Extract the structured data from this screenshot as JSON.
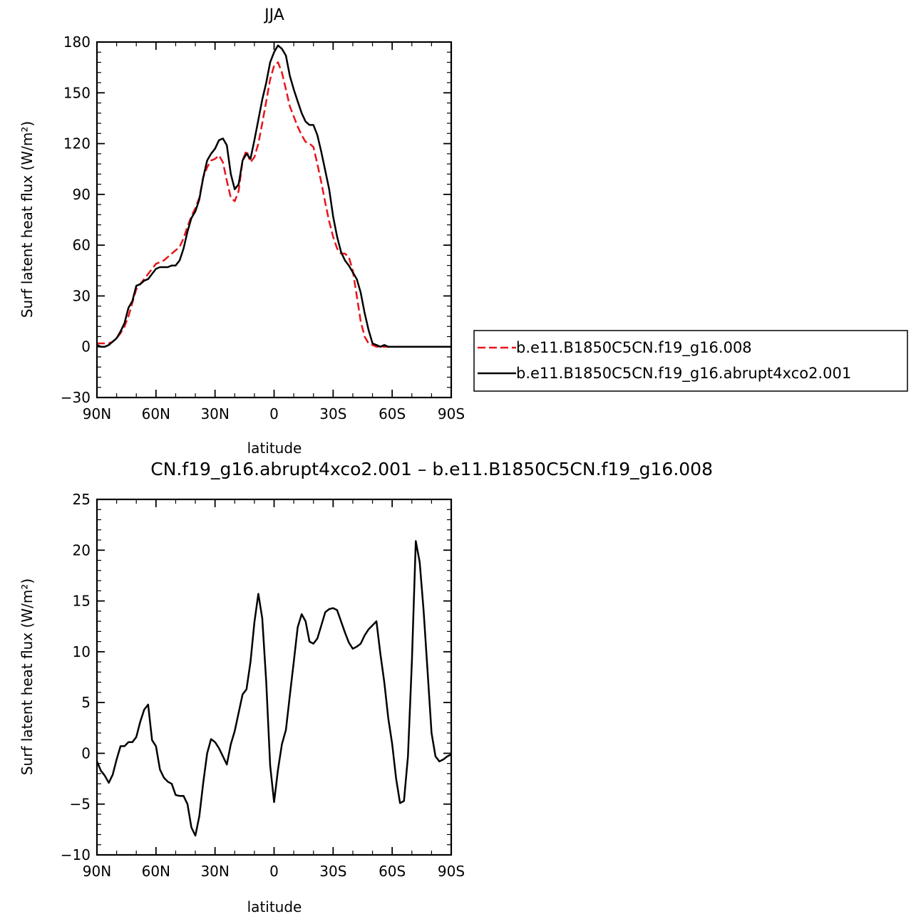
{
  "chart_data": [
    {
      "type": "line",
      "title": "JJA",
      "xlabel": "latitude",
      "ylabel": "Surf latent heat flux (W/m²)",
      "xlim": [
        90,
        -90
      ],
      "ylim": [
        -30,
        180
      ],
      "yticks": [
        -30,
        0,
        30,
        60,
        90,
        120,
        150,
        180
      ],
      "xticks": [
        {
          "value": 90,
          "label": "90N"
        },
        {
          "value": 60,
          "label": "60N"
        },
        {
          "value": 30,
          "label": "30N"
        },
        {
          "value": 0,
          "label": "0"
        },
        {
          "value": -30,
          "label": "30S"
        },
        {
          "value": -60,
          "label": "60S"
        },
        {
          "value": -90,
          "label": "90S"
        }
      ],
      "grid": false,
      "legend_position": "right",
      "series": [
        {
          "name": "b.e11.B1850C5CN.f19_g16.008",
          "color": "#e8141b",
          "dash": "dashed",
          "x": [
            90,
            88,
            86,
            84,
            82,
            80,
            78,
            76,
            74,
            72,
            70,
            68,
            66,
            64,
            62,
            60,
            58,
            56,
            54,
            52,
            50,
            48,
            46,
            44,
            42,
            40,
            38,
            36,
            34,
            32,
            30,
            28,
            26,
            24,
            22,
            20,
            18,
            16,
            14,
            12,
            10,
            8,
            6,
            4,
            2,
            0,
            -2,
            -4,
            -6,
            -8,
            -10,
            -12,
            -14,
            -16,
            -18,
            -20,
            -22,
            -24,
            -26,
            -28,
            -30,
            -32,
            -34,
            -36,
            -38,
            -40,
            -42,
            -44,
            -46,
            -48,
            -50,
            -52,
            -54,
            -56,
            -58,
            -60,
            -62,
            -64,
            -66,
            -68,
            -70,
            -72,
            -74,
            -76,
            -78,
            -80,
            -82,
            -84,
            -86,
            -88,
            -90
          ],
          "y": [
            2,
            2,
            2,
            2,
            3,
            5,
            8,
            12,
            18,
            26,
            34,
            37,
            40,
            43,
            46,
            49,
            50,
            51,
            53,
            55,
            57,
            59,
            64,
            71,
            77,
            82,
            88,
            100,
            106,
            110,
            111,
            113,
            109,
            98,
            88,
            86,
            92,
            110,
            116,
            109,
            112,
            120,
            132,
            145,
            158,
            166,
            168,
            162,
            152,
            142,
            136,
            130,
            125,
            121,
            120,
            118,
            108,
            97,
            85,
            74,
            65,
            58,
            55,
            55,
            53,
            45,
            30,
            15,
            6,
            2,
            1,
            0,
            0,
            0,
            0,
            0,
            0,
            0,
            0,
            0,
            0,
            0,
            0,
            0,
            0,
            0,
            0,
            0,
            0,
            0,
            0
          ]
        },
        {
          "name": "b.e11.B1850C5CN.f19_g16.abrupt4xco2.001",
          "color": "#000000",
          "dash": "solid",
          "x": [
            90,
            88,
            86,
            84,
            82,
            80,
            78,
            76,
            74,
            72,
            70,
            68,
            66,
            64,
            62,
            60,
            58,
            56,
            54,
            52,
            50,
            48,
            46,
            44,
            42,
            40,
            38,
            36,
            34,
            32,
            30,
            28,
            26,
            24,
            22,
            20,
            18,
            16,
            14,
            12,
            10,
            8,
            6,
            4,
            2,
            0,
            -2,
            -4,
            -6,
            -8,
            -10,
            -12,
            -14,
            -16,
            -18,
            -20,
            -22,
            -24,
            -26,
            -28,
            -30,
            -32,
            -34,
            -36,
            -38,
            -40,
            -42,
            -44,
            -46,
            -48,
            -50,
            -52,
            -54,
            -56,
            -58,
            -60,
            -62,
            -64,
            -66,
            -68,
            -70,
            -72,
            -74,
            -76,
            -78,
            -80,
            -82,
            -84,
            -86,
            -88,
            -90
          ],
          "y": [
            1,
            0,
            0,
            1,
            3,
            5,
            9,
            14,
            23,
            27,
            36,
            37,
            39,
            40,
            43,
            46,
            47,
            47,
            47,
            48,
            48,
            51,
            58,
            68,
            76,
            80,
            87,
            100,
            110,
            114,
            117,
            122,
            123,
            119,
            102,
            93,
            96,
            110,
            114,
            111,
            122,
            134,
            146,
            156,
            168,
            174,
            178,
            176,
            172,
            160,
            152,
            145,
            138,
            133,
            131,
            131,
            125,
            115,
            104,
            93,
            77,
            65,
            56,
            51,
            48,
            44,
            40,
            32,
            20,
            10,
            2,
            1,
            0,
            1,
            0,
            0,
            0,
            0,
            0,
            0,
            0,
            0,
            0,
            0,
            0,
            0,
            0,
            0,
            0,
            0,
            0
          ]
        }
      ]
    },
    {
      "type": "line",
      "title": "CN.f19_g16.abrupt4xco2.001 – b.e11.B1850C5CN.f19_g16.008",
      "xlabel": "latitude",
      "ylabel": "Surf latent heat flux (W/m²)",
      "xlim": [
        90,
        -90
      ],
      "ylim": [
        -10,
        25
      ],
      "yticks": [
        -10,
        -5,
        0,
        5,
        10,
        15,
        20,
        25
      ],
      "xticks": [
        {
          "value": 90,
          "label": "90N"
        },
        {
          "value": 60,
          "label": "60N"
        },
        {
          "value": 30,
          "label": "30N"
        },
        {
          "value": 0,
          "label": "0"
        },
        {
          "value": -30,
          "label": "30S"
        },
        {
          "value": -60,
          "label": "60S"
        },
        {
          "value": -90,
          "label": "90S"
        }
      ],
      "grid": false,
      "series": [
        {
          "color": "#000000",
          "dash": "solid",
          "x": [
            90,
            88,
            86,
            84,
            82,
            80,
            78,
            76,
            74,
            72,
            70,
            68,
            66,
            64,
            62,
            60,
            58,
            56,
            54,
            52,
            50,
            48,
            46,
            44,
            42,
            40,
            38,
            36,
            34,
            32,
            30,
            28,
            26,
            24,
            22,
            20,
            18,
            16,
            14,
            12,
            10,
            8,
            6,
            4,
            2,
            0,
            -2,
            -4,
            -6,
            -8,
            -10,
            -12,
            -14,
            -16,
            -18,
            -20,
            -22,
            -24,
            -26,
            -28,
            -30,
            -32,
            -34,
            -36,
            -38,
            -40,
            -42,
            -44,
            -46,
            -48,
            -50,
            -52,
            -54,
            -56,
            -58,
            -60,
            -62,
            -64,
            -66,
            -68,
            -70,
            -72,
            -74,
            -76,
            -78,
            -80,
            -82,
            -84,
            -86,
            -88,
            -90
          ],
          "y": [
            -0.8,
            -1.7,
            -2.2,
            -2.9,
            -2.1,
            -0.6,
            0.7,
            0.7,
            1.1,
            1.1,
            1.6,
            3.1,
            4.3,
            4.8,
            1.3,
            0.7,
            -1.6,
            -2.4,
            -2.8,
            -3.0,
            -4.1,
            -4.2,
            -4.2,
            -5.0,
            -7.3,
            -8.1,
            -6.2,
            -2.9,
            0.0,
            1.4,
            1.1,
            0.5,
            -0.3,
            -1.1,
            0.9,
            2.2,
            4.0,
            5.8,
            6.3,
            9.0,
            12.9,
            15.7,
            13.3,
            7.0,
            -1.2,
            -4.8,
            -1.6,
            0.9,
            2.3,
            5.7,
            9.0,
            12.4,
            13.7,
            13.0,
            11.0,
            10.8,
            11.3,
            12.6,
            13.9,
            14.2,
            14.3,
            14.1,
            13.0,
            11.9,
            10.9,
            10.3,
            10.5,
            10.8,
            11.6,
            12.2,
            12.6,
            13.0,
            9.8,
            7.0,
            3.5,
            0.9,
            -2.5,
            -4.9,
            -4.7,
            -0.3,
            9.0,
            20.9,
            18.8,
            14.0,
            8.0,
            2.0,
            -0.3,
            -0.8,
            -0.6,
            -0.3,
            -0.1
          ]
        }
      ]
    }
  ]
}
